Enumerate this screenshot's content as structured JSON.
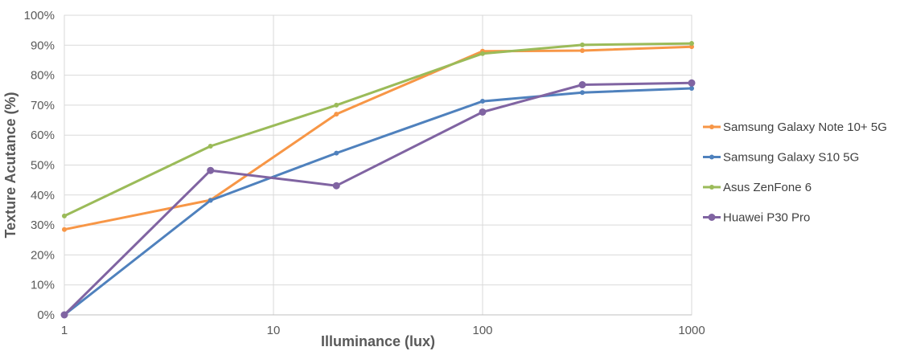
{
  "chart_data": {
    "type": "line",
    "title": "",
    "xlabel": "Illuminance (lux)",
    "ylabel": "Texture Acutance (%)",
    "x_scale": "log",
    "xlim": [
      1,
      1000
    ],
    "ylim": [
      0,
      100
    ],
    "x_ticks": [
      1,
      10,
      100,
      1000
    ],
    "x_tick_labels": [
      "1",
      "10",
      "100",
      "1000"
    ],
    "y_ticks": [
      0,
      10,
      20,
      30,
      40,
      50,
      60,
      70,
      80,
      90,
      100
    ],
    "y_tick_labels": [
      "0%",
      "10%",
      "20%",
      "30%",
      "40%",
      "50%",
      "60%",
      "70%",
      "80%",
      "90%",
      "100%"
    ],
    "grid": true,
    "legend_position": "right",
    "series": [
      {
        "name": "Samsung Galaxy Note 10+ 5G",
        "color": "#F79646",
        "marker_size": "small",
        "points": [
          [
            1,
            28.5
          ],
          [
            5,
            38.3
          ],
          [
            20,
            67
          ],
          [
            100,
            88
          ],
          [
            300,
            88.2
          ],
          [
            1000,
            89.5
          ]
        ]
      },
      {
        "name": "Samsung Galaxy S10 5G",
        "color": "#4F81BD",
        "marker_size": "small",
        "points": [
          [
            1,
            0
          ],
          [
            5,
            38.2
          ],
          [
            20,
            54
          ],
          [
            100,
            71.3
          ],
          [
            300,
            74.2
          ],
          [
            1000,
            75.6
          ]
        ]
      },
      {
        "name": "Asus ZenFone 6",
        "color": "#9BBB59",
        "marker_size": "small",
        "points": [
          [
            1,
            33
          ],
          [
            5,
            56.3
          ],
          [
            20,
            70
          ],
          [
            100,
            87.2
          ],
          [
            300,
            90.1
          ],
          [
            1000,
            90.6
          ]
        ]
      },
      {
        "name": "Huawei P30 Pro",
        "color": "#8064A2",
        "marker_size": "large",
        "points": [
          [
            1,
            0
          ],
          [
            5,
            48.2
          ],
          [
            20,
            43.1
          ],
          [
            100,
            67.7
          ],
          [
            300,
            76.8
          ],
          [
            1000,
            77.4
          ]
        ]
      }
    ]
  }
}
